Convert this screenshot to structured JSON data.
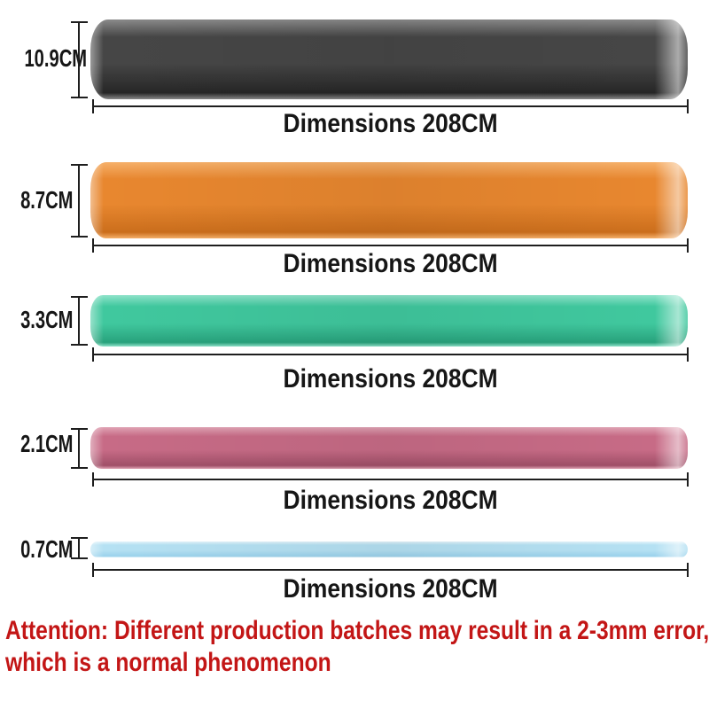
{
  "figure": {
    "bands": [
      {
        "id": "black",
        "width_label": "10.9CM",
        "dimension_label": "Dimensions 208CM",
        "colors": {
          "main": "#464646",
          "light": "#8a8a8a",
          "dark": "#262626"
        }
      },
      {
        "id": "orange",
        "width_label": "8.7CM",
        "dimension_label": "Dimensions 208CM",
        "colors": {
          "main": "#e8872f",
          "light": "#f6b06a",
          "dark": "#cb6e1c"
        }
      },
      {
        "id": "green",
        "width_label": "3.3CM",
        "dimension_label": "Dimensions 208CM",
        "colors": {
          "main": "#40c89e",
          "light": "#8fe3ca",
          "dark": "#28a27c"
        }
      },
      {
        "id": "pink",
        "width_label": "2.1CM",
        "dimension_label": "Dimensions 208CM",
        "colors": {
          "main": "#c76b86",
          "light": "#e0a3b4",
          "dark": "#a04f68"
        }
      },
      {
        "id": "blue",
        "width_label": "0.7CM",
        "dimension_label": "Dimensions 208CM",
        "colors": {
          "main": "#b5e1f3",
          "light": "#e3f4fb",
          "dark": "#9bd2ec"
        }
      }
    ],
    "attention": {
      "line1": "Attention: Different production batches may result in a 2-3mm error,",
      "line2": "which is a normal phenomenon",
      "color": "#c31616"
    },
    "dimension_line_color": "#1e1e1e"
  }
}
